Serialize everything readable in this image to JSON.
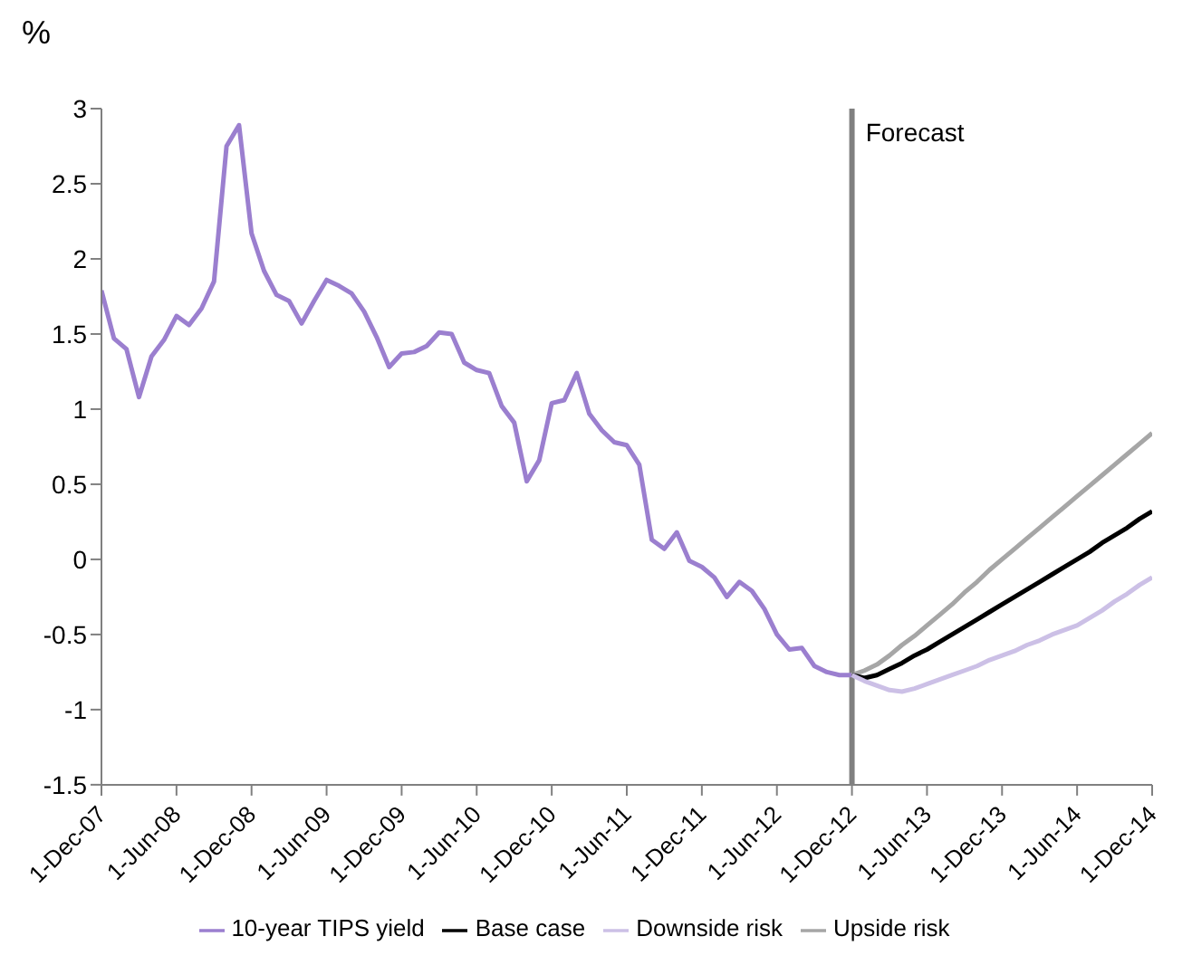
{
  "chart_data": {
    "type": "line",
    "ylabel": "%",
    "categories": [
      "1-Dec-07",
      null,
      null,
      null,
      null,
      null,
      "1-Jun-08",
      null,
      null,
      null,
      null,
      null,
      "1-Dec-08",
      null,
      null,
      null,
      null,
      null,
      "1-Jun-09",
      null,
      null,
      null,
      null,
      null,
      "1-Dec-09",
      null,
      null,
      null,
      null,
      null,
      "1-Jun-10",
      null,
      null,
      null,
      null,
      null,
      "1-Dec-10",
      null,
      null,
      null,
      null,
      null,
      "1-Jun-11",
      null,
      null,
      null,
      null,
      null,
      "1-Dec-11",
      null,
      null,
      null,
      null,
      null,
      "1-Jun-12",
      null,
      null,
      null,
      null,
      null,
      "1-Dec-12",
      null,
      null,
      null,
      null,
      null,
      "1-Jun-13",
      null,
      null,
      null,
      null,
      null,
      "1-Dec-13",
      null,
      null,
      null,
      null,
      null,
      "1-Jun-14",
      null,
      null,
      null,
      null,
      null,
      "1-Dec-14"
    ],
    "series": [
      {
        "name": "10-year TIPS yield",
        "color": "#9b7fcf",
        "values": [
          1.79,
          1.47,
          1.4,
          1.08,
          1.35,
          1.46,
          1.62,
          1.56,
          1.67,
          1.85,
          2.75,
          2.89,
          2.17,
          1.92,
          1.76,
          1.72,
          1.57,
          1.72,
          1.86,
          1.82,
          1.77,
          1.65,
          1.48,
          1.28,
          1.37,
          1.38,
          1.42,
          1.51,
          1.5,
          1.31,
          1.26,
          1.24,
          1.02,
          0.91,
          0.52,
          0.66,
          1.04,
          1.06,
          1.24,
          0.97,
          0.86,
          0.78,
          0.76,
          0.63,
          0.13,
          0.07,
          0.18,
          -0.01,
          -0.05,
          -0.12,
          -0.25,
          -0.15,
          -0.21,
          -0.33,
          -0.5,
          -0.6,
          -0.59,
          -0.71,
          -0.75,
          -0.77,
          -0.77,
          null,
          null,
          null,
          null,
          null,
          null,
          null,
          null,
          null,
          null,
          null,
          null,
          null,
          null,
          null,
          null,
          null,
          null,
          null,
          null,
          null,
          null,
          null,
          null
        ]
      },
      {
        "name": "Upside risk",
        "color": "#a6a6a6",
        "values": [
          null,
          null,
          null,
          null,
          null,
          null,
          null,
          null,
          null,
          null,
          null,
          null,
          null,
          null,
          null,
          null,
          null,
          null,
          null,
          null,
          null,
          null,
          null,
          null,
          null,
          null,
          null,
          null,
          null,
          null,
          null,
          null,
          null,
          null,
          null,
          null,
          null,
          null,
          null,
          null,
          null,
          null,
          null,
          null,
          null,
          null,
          null,
          null,
          null,
          null,
          null,
          null,
          null,
          null,
          null,
          null,
          null,
          null,
          null,
          null,
          -0.77,
          -0.74,
          -0.7,
          -0.64,
          -0.57,
          -0.51,
          -0.44,
          -0.37,
          -0.3,
          -0.22,
          -0.15,
          -0.07,
          0.0,
          0.07,
          0.14,
          0.21,
          0.28,
          0.35,
          0.42,
          0.49,
          0.56,
          0.63,
          0.7,
          0.77,
          0.84
        ]
      },
      {
        "name": "Base case",
        "color": "#000000",
        "values": [
          null,
          null,
          null,
          null,
          null,
          null,
          null,
          null,
          null,
          null,
          null,
          null,
          null,
          null,
          null,
          null,
          null,
          null,
          null,
          null,
          null,
          null,
          null,
          null,
          null,
          null,
          null,
          null,
          null,
          null,
          null,
          null,
          null,
          null,
          null,
          null,
          null,
          null,
          null,
          null,
          null,
          null,
          null,
          null,
          null,
          null,
          null,
          null,
          null,
          null,
          null,
          null,
          null,
          null,
          null,
          null,
          null,
          null,
          null,
          null,
          -0.77,
          -0.79,
          -0.77,
          -0.73,
          -0.69,
          -0.64,
          -0.6,
          -0.55,
          -0.5,
          -0.45,
          -0.4,
          -0.35,
          -0.3,
          -0.25,
          -0.2,
          -0.15,
          -0.1,
          -0.05,
          0.0,
          0.05,
          0.11,
          0.16,
          0.21,
          0.27,
          0.32
        ]
      },
      {
        "name": "Downside risk",
        "color": "#ccc0e6",
        "values": [
          null,
          null,
          null,
          null,
          null,
          null,
          null,
          null,
          null,
          null,
          null,
          null,
          null,
          null,
          null,
          null,
          null,
          null,
          null,
          null,
          null,
          null,
          null,
          null,
          null,
          null,
          null,
          null,
          null,
          null,
          null,
          null,
          null,
          null,
          null,
          null,
          null,
          null,
          null,
          null,
          null,
          null,
          null,
          null,
          null,
          null,
          null,
          null,
          null,
          null,
          null,
          null,
          null,
          null,
          null,
          null,
          null,
          null,
          null,
          null,
          -0.77,
          -0.81,
          -0.84,
          -0.87,
          -0.88,
          -0.86,
          -0.83,
          -0.8,
          -0.77,
          -0.74,
          -0.71,
          -0.67,
          -0.64,
          -0.61,
          -0.57,
          -0.54,
          -0.5,
          -0.47,
          -0.44,
          -0.39,
          -0.34,
          -0.28,
          -0.23,
          -0.17,
          -0.12
        ]
      }
    ],
    "ylim": [
      -1.5,
      3
    ],
    "yticks": [
      -1.5,
      -1,
      -0.5,
      0,
      0.5,
      1,
      1.5,
      2,
      2.5,
      3
    ],
    "ref_lines": [
      {
        "axis": "x",
        "value": "1-Dec-12",
        "label": "Forecast",
        "color": "#808080"
      }
    ],
    "grid": false,
    "legend": "bottom",
    "marker": "none",
    "line_style": "solid"
  }
}
